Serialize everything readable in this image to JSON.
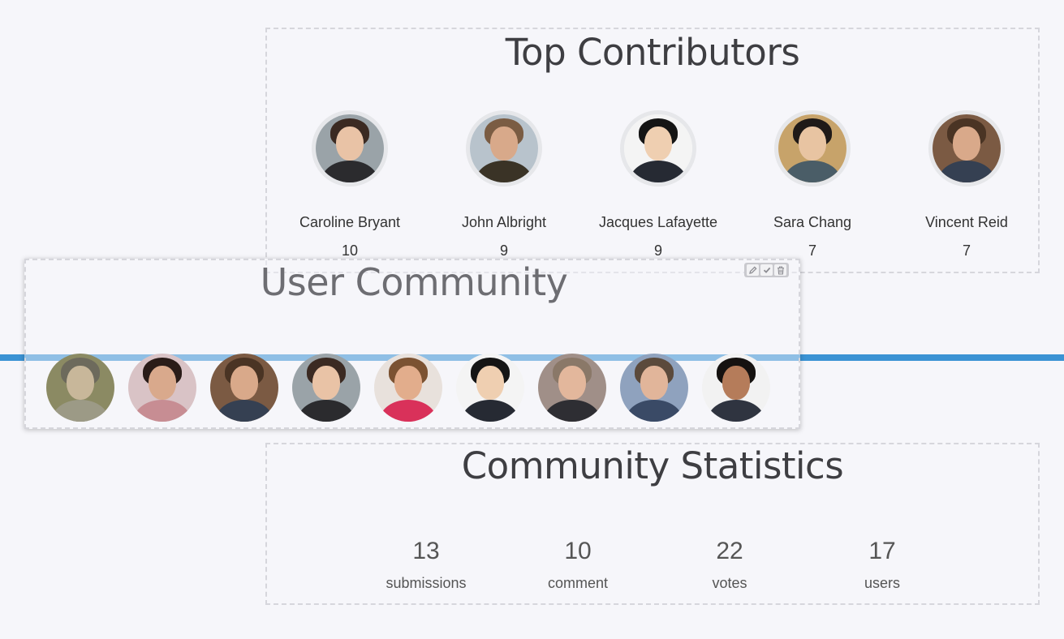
{
  "top_contributors": {
    "title": "Top Contributors",
    "people": [
      {
        "name": "Caroline Bryant",
        "count": "10",
        "skin": "#e9c3a6",
        "hair": "#3b2a22",
        "shirt": "#2b2b2e",
        "bg": "#9aa3a8"
      },
      {
        "name": "John Albright",
        "count": "9",
        "skin": "#d8a98a",
        "hair": "#7a5c43",
        "shirt": "#3a3326",
        "bg": "#b8c3cc"
      },
      {
        "name": "Jacques Lafayette",
        "count": "9",
        "skin": "#efcfb1",
        "hair": "#151515",
        "shirt": "#262a33",
        "bg": "#f4f4f4"
      },
      {
        "name": "Sara Chang",
        "count": "7",
        "skin": "#e8c4a2",
        "hair": "#1f1a18",
        "shirt": "#4a5d67",
        "bg": "#c7a36a"
      },
      {
        "name": "Vincent Reid",
        "count": "7",
        "skin": "#d9a98a",
        "hair": "#4a3424",
        "shirt": "#354052",
        "bg": "#7b5a43"
      }
    ]
  },
  "user_community": {
    "title": "User Community",
    "toolbar": {
      "edit_icon": "pencil-icon",
      "confirm_icon": "checkmark-icon",
      "delete_icon": "trash-icon"
    },
    "members": [
      {
        "skin": "#c8b79a",
        "hair": "#6d6a5c",
        "shirt": "#9c9a86",
        "bg": "#8b8a63"
      },
      {
        "skin": "#d9a98c",
        "hair": "#2a1c18",
        "shirt": "#c78d93",
        "bg": "#d9c3c6"
      },
      {
        "skin": "#d9a98a",
        "hair": "#4a3424",
        "shirt": "#354052",
        "bg": "#7b5a43"
      },
      {
        "skin": "#e9c3a6",
        "hair": "#3b2a22",
        "shirt": "#2b2b2e",
        "bg": "#9aa3a8"
      },
      {
        "skin": "#e2ad8c",
        "hair": "#7b5232",
        "shirt": "#d9315a",
        "bg": "#e8e1dc"
      },
      {
        "skin": "#efcfb1",
        "hair": "#151515",
        "shirt": "#262a33",
        "bg": "#f4f4f4"
      },
      {
        "skin": "#e3b79c",
        "hair": "#8a7868",
        "shirt": "#2e2e33",
        "bg": "#a08f88"
      },
      {
        "skin": "#e1b59a",
        "hair": "#5b4a3c",
        "shirt": "#3a4a66",
        "bg": "#8fa2be"
      },
      {
        "skin": "#b57c5a",
        "hair": "#151210",
        "shirt": "#2f3440",
        "bg": "#f2f2f2"
      }
    ]
  },
  "community_statistics": {
    "title": "Community Statistics",
    "stats": [
      {
        "value": "13",
        "label": "submissions"
      },
      {
        "value": "10",
        "label": "comment"
      },
      {
        "value": "22",
        "label": "votes"
      },
      {
        "value": "17",
        "label": "users"
      }
    ]
  },
  "colors": {
    "accent": "#3b93d4",
    "background": "#f6f6fa",
    "dashed_border": "#d6d6dc"
  }
}
